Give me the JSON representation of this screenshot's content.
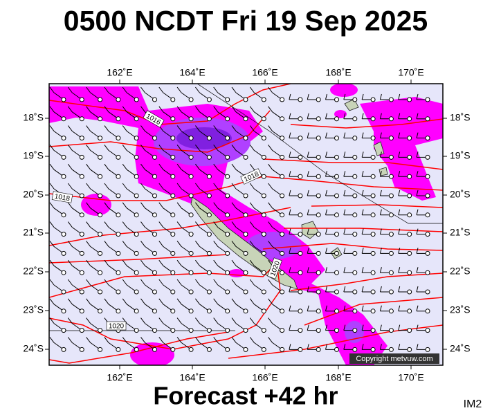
{
  "header": {
    "title": "0500 NCDT Fri 19 Sep 2025"
  },
  "map": {
    "lon_labels": [
      "162˚E",
      "164˚E",
      "166˚E",
      "168˚E",
      "170˚E"
    ],
    "lat_labels": [
      "18˚S",
      "19˚S",
      "20˚S",
      "21˚S",
      "22˚S",
      "23˚S",
      "24˚S"
    ],
    "isobar_labels": [
      "1016",
      "1018",
      "1018",
      "1020",
      "1020"
    ],
    "copyright": "Copyright metvuw.com"
  },
  "footer": {
    "forecast": "Forecast +42 hr",
    "code": "IM2"
  }
}
